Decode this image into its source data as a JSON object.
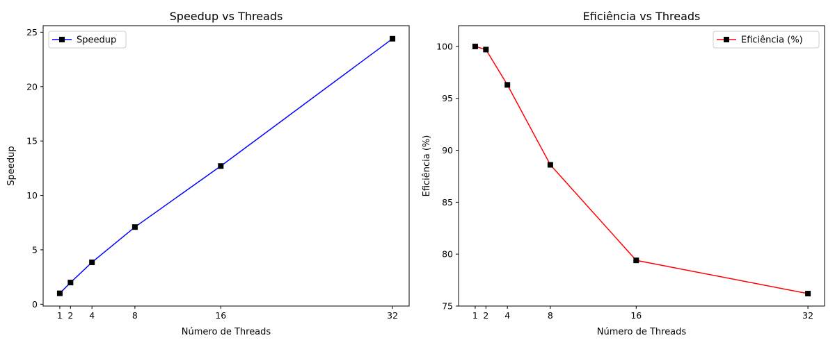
{
  "chart_data": [
    {
      "type": "line",
      "title": "Speedup vs Threads",
      "xlabel": "Número de Threads",
      "ylabel": "Speedup",
      "x": [
        1,
        2,
        4,
        8,
        16,
        32
      ],
      "xticks": [
        1,
        2,
        4,
        8,
        16,
        32
      ],
      "yticks": [
        0,
        5,
        10,
        15,
        20,
        25
      ],
      "xlim": [
        -0.55,
        33.55
      ],
      "ylim": [
        -0.17,
        25.6
      ],
      "grid": false,
      "legend_position": "top-left",
      "series": [
        {
          "name": "Speedup",
          "values": [
            1.0,
            1.99,
            3.85,
            7.09,
            12.7,
            24.4
          ],
          "color": "#0000ff",
          "marker": "square",
          "marker_color": "#000000"
        }
      ]
    },
    {
      "type": "line",
      "title": "Eficiência vs Threads",
      "xlabel": "Número de Threads",
      "ylabel": "Eficiência (%)",
      "x": [
        1,
        2,
        4,
        8,
        16,
        32
      ],
      "xticks": [
        1,
        2,
        4,
        8,
        16,
        32
      ],
      "yticks": [
        75,
        80,
        85,
        90,
        95,
        100
      ],
      "xlim": [
        -0.55,
        33.55
      ],
      "ylim": [
        75.0,
        102.0
      ],
      "grid": false,
      "legend_position": "top-right",
      "series": [
        {
          "name": "Eficiência (%)",
          "values": [
            100.0,
            99.7,
            96.3,
            88.6,
            79.4,
            76.2
          ],
          "color": "#ff0000",
          "marker": "square",
          "marker_color": "#000000"
        }
      ]
    }
  ]
}
